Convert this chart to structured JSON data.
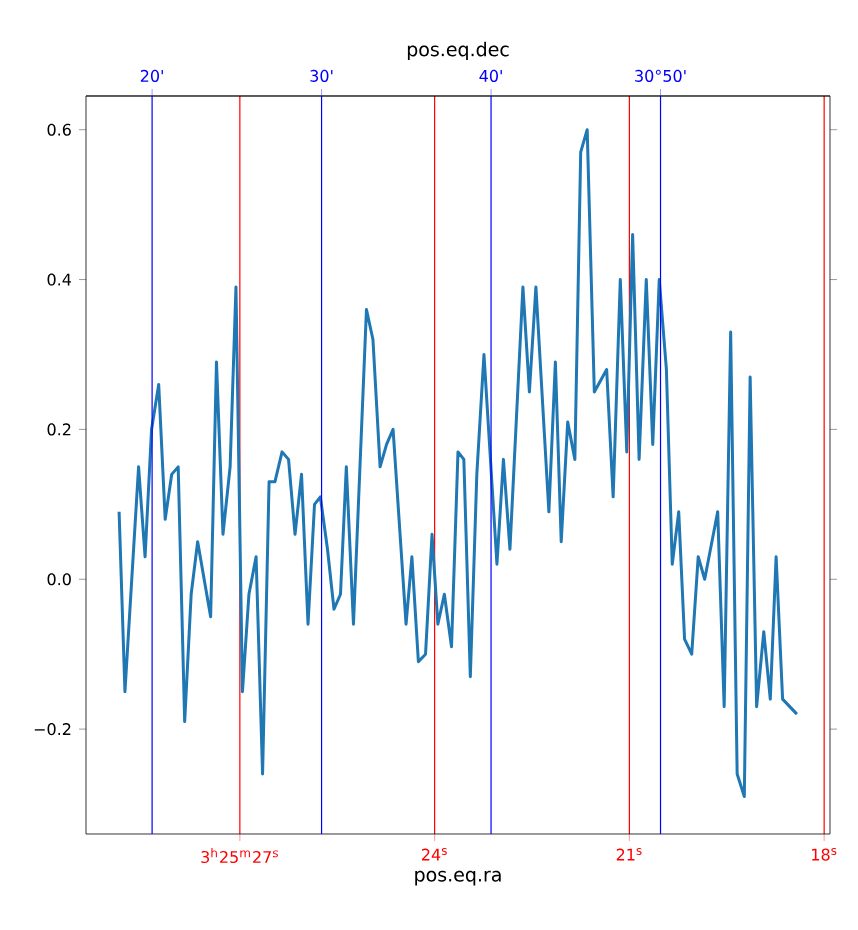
{
  "chart_data": {
    "type": "line",
    "xlabel": "pos.eq.ra",
    "x2label": "pos.eq.dec",
    "x": [
      28.86,
      28.77,
      28.56,
      28.46,
      28.36,
      28.25,
      28.15,
      28.05,
      27.95,
      27.85,
      27.75,
      27.65,
      27.45,
      27.36,
      27.26,
      27.15,
      27.06,
      26.96,
      26.86,
      26.75,
      26.65,
      26.55,
      26.46,
      26.35,
      26.25,
      26.15,
      26.05,
      25.95,
      25.85,
      25.76,
      25.65,
      25.55,
      25.45,
      25.36,
      25.25,
      25.05,
      24.95,
      24.84,
      24.74,
      24.64,
      24.44,
      24.35,
      24.25,
      24.14,
      24.04,
      23.95,
      23.85,
      23.74,
      23.64,
      23.55,
      23.45,
      23.35,
      23.24,
      23.04,
      22.94,
      22.84,
      22.64,
      22.54,
      22.44,
      22.24,
      22.14,
      22.05,
      21.95,
      21.84,
      21.75,
      21.65,
      21.54,
      21.35,
      21.25,
      21.14,
      21.04,
      20.95,
      20.85,
      20.74,
      20.64,
      20.54,
      20.43,
      20.34,
      20.24,
      20.15,
      20.04,
      19.94,
      19.84,
      19.64,
      19.54,
      19.44,
      19.34,
      19.23,
      19.14,
      19.04,
      18.93,
      18.83,
      18.74,
      18.64,
      18.42
    ],
    "series": [
      {
        "color": "#1f77b4",
        "values": [
          0.09,
          -0.15,
          0.15,
          0.03,
          0.2,
          0.26,
          0.08,
          0.14,
          0.15,
          -0.19,
          -0.02,
          0.05,
          -0.05,
          0.29,
          0.06,
          0.15,
          0.39,
          -0.15,
          -0.02,
          0.03,
          -0.26,
          0.13,
          0.13,
          0.17,
          0.16,
          0.06,
          0.14,
          -0.06,
          0.1,
          0.11,
          0.04,
          -0.04,
          -0.02,
          0.15,
          -0.06,
          0.36,
          0.32,
          0.15,
          0.18,
          0.2,
          -0.06,
          0.03,
          -0.11,
          -0.1,
          0.06,
          -0.06,
          -0.02,
          -0.09,
          0.17,
          0.16,
          -0.13,
          0.14,
          0.3,
          0.02,
          0.16,
          0.04,
          0.39,
          0.25,
          0.39,
          0.09,
          0.29,
          0.05,
          0.21,
          0.16,
          0.57,
          0.6,
          0.25,
          0.28,
          0.11,
          0.4,
          0.17,
          0.46,
          0.16,
          0.4,
          0.18,
          0.4,
          0.28,
          0.02,
          0.09,
          -0.08,
          -0.1,
          0.03,
          0.0,
          0.09,
          -0.17,
          0.33,
          -0.26,
          -0.29,
          0.27,
          -0.17,
          -0.07,
          -0.16,
          0.03,
          -0.16,
          -0.18
        ]
      }
    ],
    "xlim": [
      29.37,
      17.91
    ],
    "xticks": [
      {
        "value": 27,
        "label": "3$^{h}$25$^{m}$27$^{s}$"
      },
      {
        "value": 24,
        "label": "24$^{s}$"
      },
      {
        "value": 21,
        "label": "21$^{s}$"
      },
      {
        "value": 18,
        "label": "18$^{s}$"
      }
    ],
    "x2lim": [
      16.1,
      60.0
    ],
    "x2ticks": [
      {
        "value": 20,
        "label": "20'"
      },
      {
        "value": 30,
        "label": "30'"
      },
      {
        "value": 40,
        "label": "40'"
      },
      {
        "value": 50,
        "label": "30°50'"
      }
    ],
    "ylim": [
      -0.34,
      0.645
    ],
    "yticks": [
      {
        "value": -0.2,
        "label": "−0.2"
      },
      {
        "value": 0,
        "label": "0.0"
      },
      0.2,
      0.4,
      0.6
    ],
    "grid": "x",
    "marker": "none",
    "line_style": "solid"
  }
}
